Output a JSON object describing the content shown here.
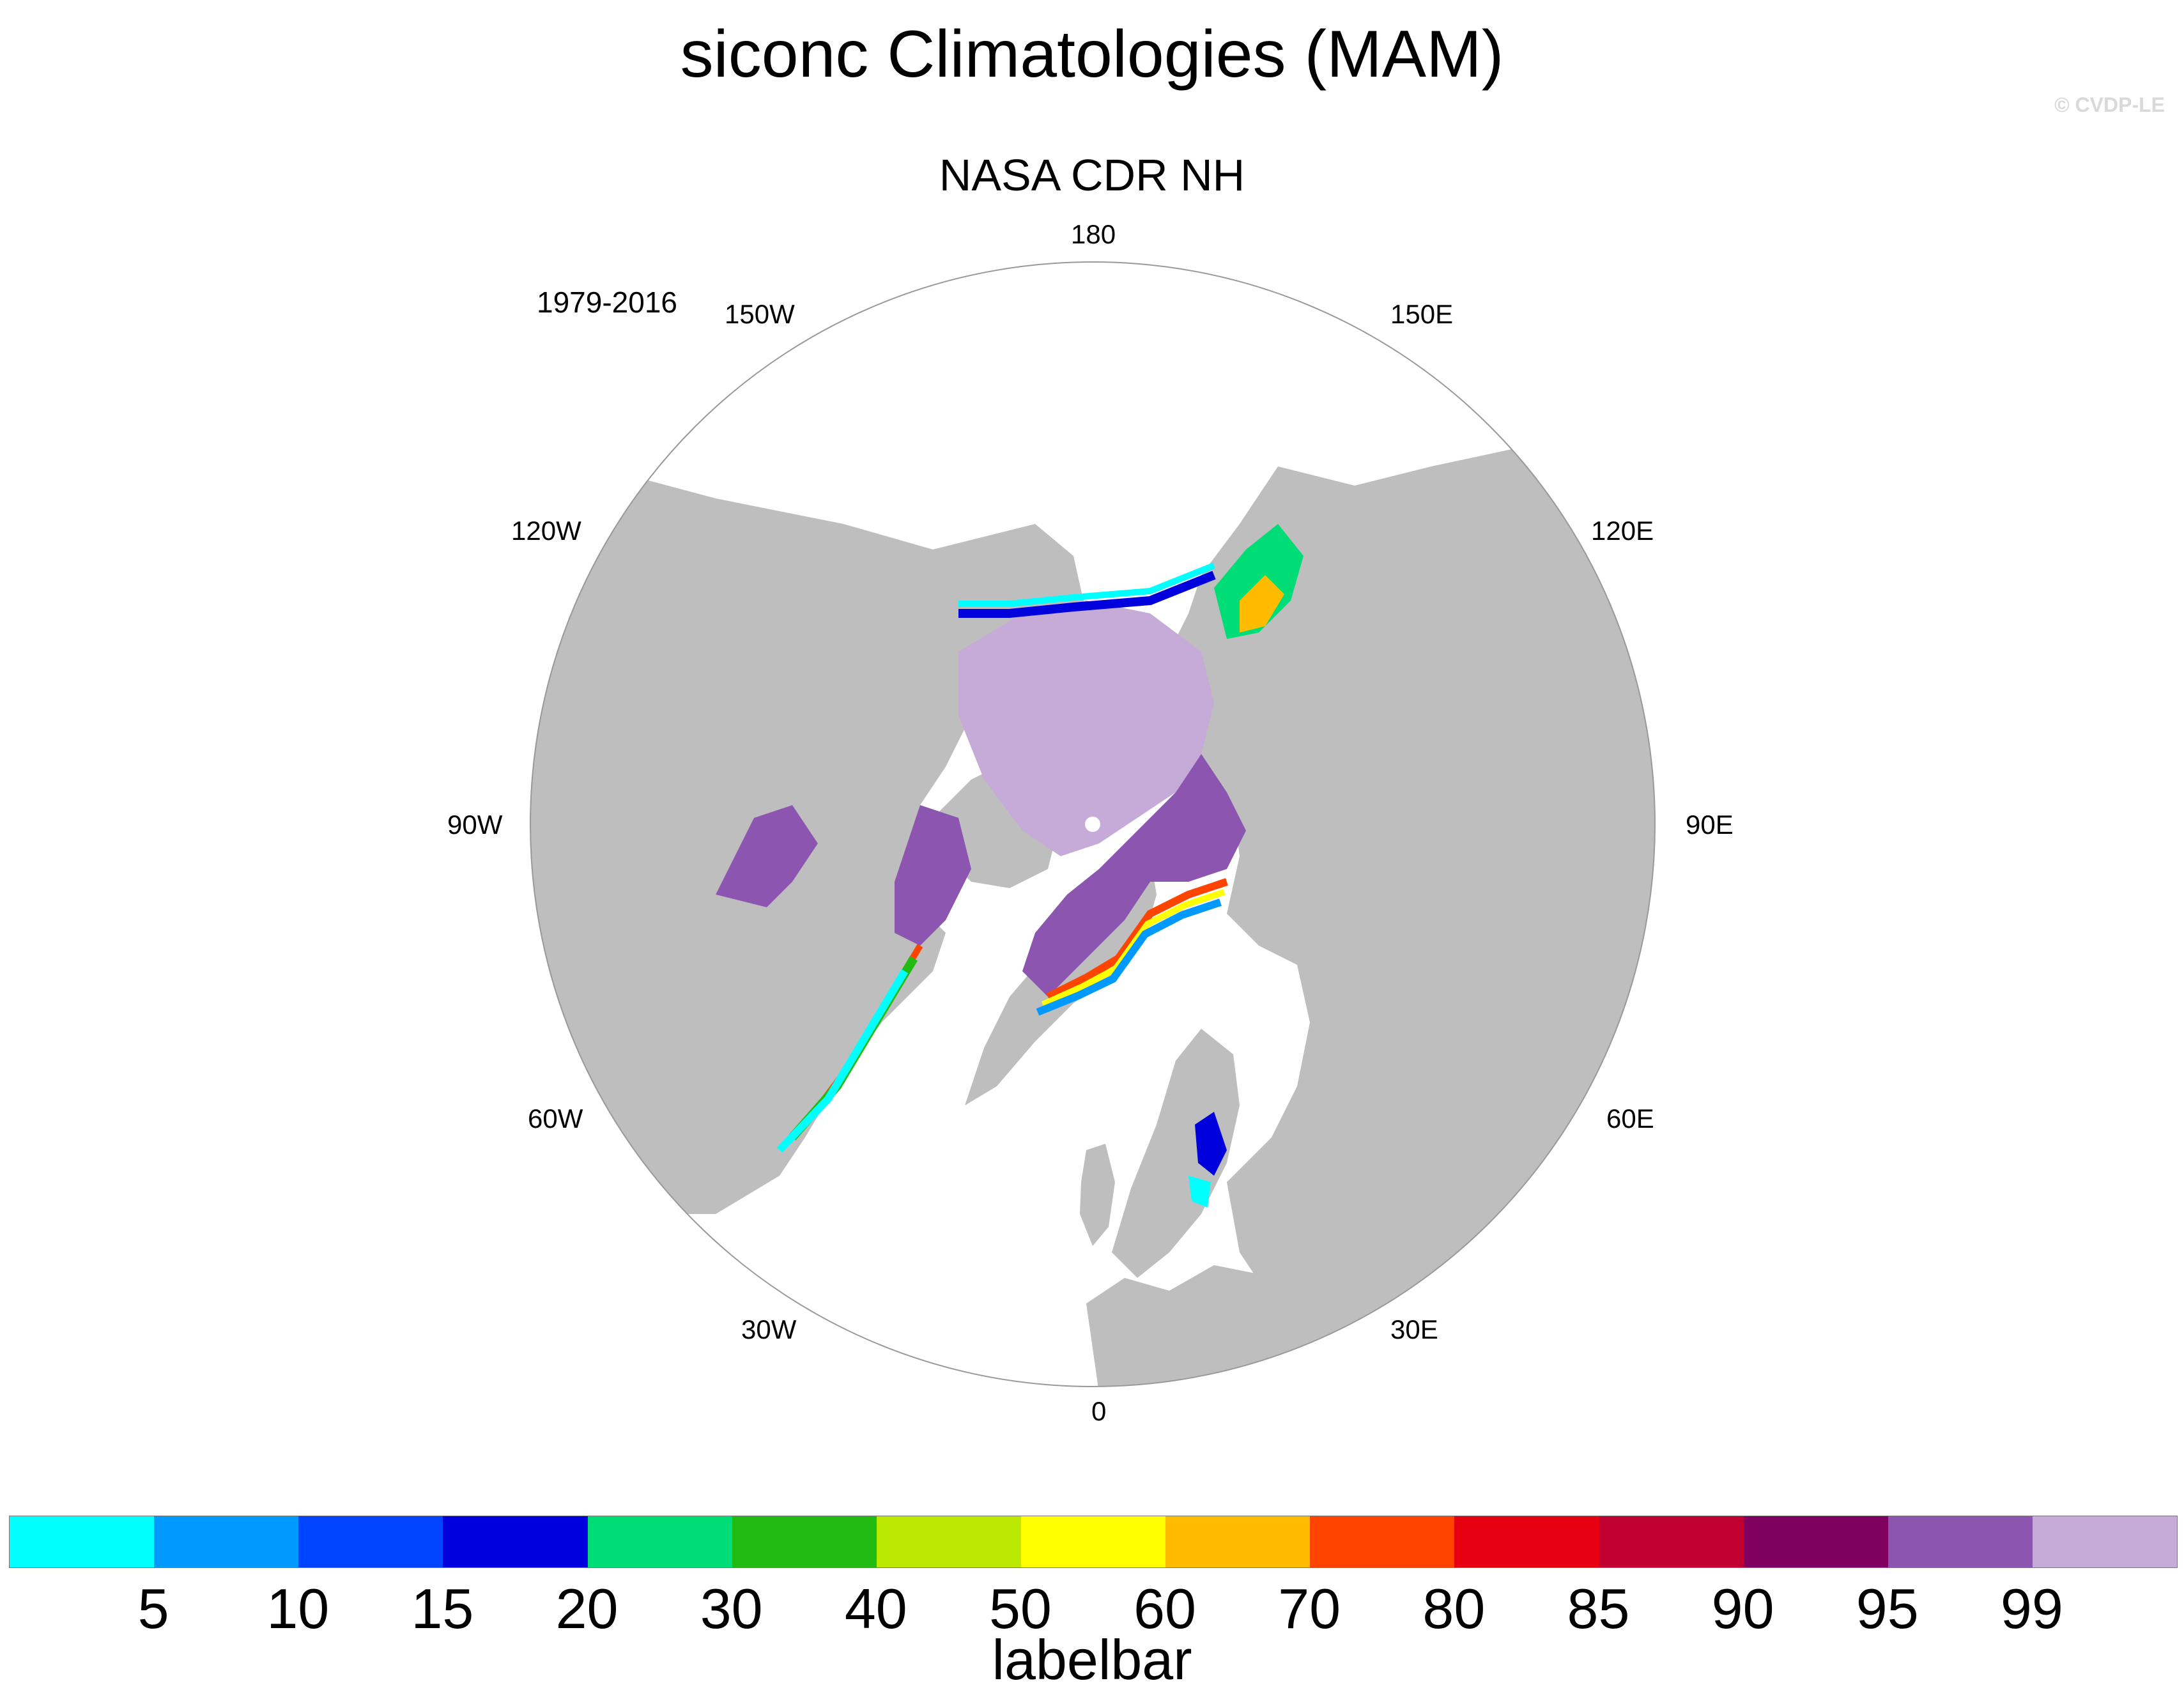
{
  "title": "siconc Climatologies (MAM)",
  "copyright": "© CVDP-LE",
  "subtitle": "NASA CDR NH",
  "period": "1979-2016",
  "lon_labels": {
    "l180": "180",
    "l150e": "150E",
    "l120e": "120E",
    "l90e": "90E",
    "l60e": "60E",
    "l30e": "30E",
    "l0": "0",
    "l30w": "30W",
    "l60w": "60W",
    "l90w": "90W",
    "l120w": "120W",
    "l150w": "150W"
  },
  "colors": {
    "land": "#bebebe",
    "ocean": "#ffffff",
    "boundary": "#999999"
  },
  "labelbar": {
    "title": "labelbar",
    "colors": [
      "#00ffff",
      "#0099ff",
      "#0044ff",
      "#0000dd",
      "#00dd77",
      "#22bb11",
      "#bbe800",
      "#ffff00",
      "#ffbb00",
      "#ff4400",
      "#e60012",
      "#c00030",
      "#800060",
      "#8b55b0",
      "#c6aad8"
    ],
    "ticks": [
      "5",
      "10",
      "15",
      "20",
      "30",
      "40",
      "50",
      "60",
      "70",
      "80",
      "85",
      "90",
      "95",
      "99"
    ]
  }
}
